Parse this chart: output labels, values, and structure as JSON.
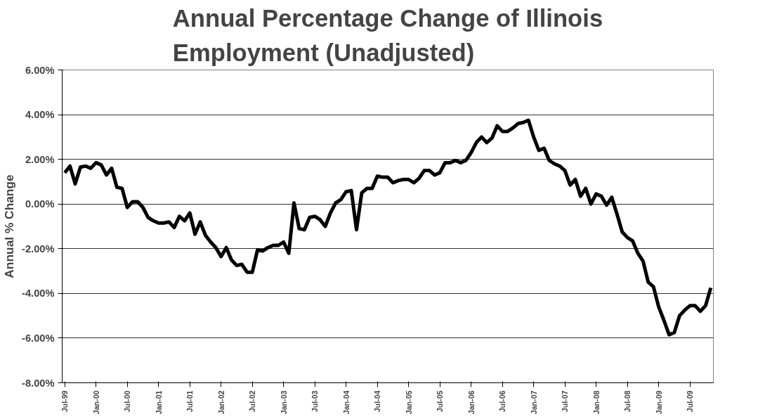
{
  "chart_data": {
    "type": "line",
    "title": "Annual Percentage Change of Illinois\nEmployment (Unadjusted)",
    "ylabel": "Annual % Change",
    "categories": [
      "Jul-99",
      null,
      null,
      null,
      null,
      null,
      "Jan-00",
      null,
      null,
      null,
      null,
      null,
      "Jul-00",
      null,
      null,
      null,
      null,
      null,
      "Jan-01",
      null,
      null,
      null,
      null,
      null,
      "Jul-01",
      null,
      null,
      null,
      null,
      null,
      "Jan-02",
      null,
      null,
      null,
      null,
      null,
      "Jul-02",
      null,
      null,
      null,
      null,
      null,
      "Jan-03",
      null,
      null,
      null,
      null,
      null,
      "Jul-03",
      null,
      null,
      null,
      null,
      null,
      "Jan-04",
      null,
      null,
      null,
      null,
      null,
      "Jul-04",
      null,
      null,
      null,
      null,
      null,
      "Jan-05",
      null,
      null,
      null,
      null,
      null,
      "Jul-05",
      null,
      null,
      null,
      null,
      null,
      "Jan-06",
      null,
      null,
      null,
      null,
      null,
      "Jul-06",
      null,
      null,
      null,
      null,
      null,
      "Jan-07",
      null,
      null,
      null,
      null,
      null,
      "Jul-07",
      null,
      null,
      null,
      null,
      null,
      "Jan-08",
      null,
      null,
      null,
      null,
      null,
      "Jul-08",
      null,
      null,
      null,
      null,
      null,
      "Jan-09",
      null,
      null,
      null,
      null,
      null,
      "Jul-09",
      null,
      null,
      null,
      null
    ],
    "series": [
      {
        "color": "#000000",
        "values": [
          1.4,
          1.7,
          0.9,
          1.65,
          1.7,
          1.6,
          1.85,
          1.75,
          1.3,
          1.6,
          0.75,
          0.7,
          -0.15,
          0.1,
          0.1,
          -0.15,
          -0.6,
          -0.75,
          -0.85,
          -0.85,
          -0.8,
          -1.05,
          -0.55,
          -0.75,
          -0.4,
          -1.35,
          -0.8,
          -1.4,
          -1.7,
          -1.95,
          -2.35,
          -1.95,
          -2.5,
          -2.75,
          -2.7,
          -3.05,
          -3.05,
          -2.05,
          -2.1,
          -1.95,
          -1.85,
          -1.85,
          -1.7,
          -2.2,
          0.05,
          -1.1,
          -1.15,
          -0.6,
          -0.55,
          -0.7,
          -1.0,
          -0.4,
          0.05,
          0.2,
          0.55,
          0.6,
          -1.15,
          0.5,
          0.7,
          0.7,
          1.25,
          1.2,
          1.2,
          0.95,
          1.05,
          1.1,
          1.1,
          0.95,
          1.15,
          1.5,
          1.5,
          1.3,
          1.4,
          1.85,
          1.85,
          1.95,
          1.85,
          1.95,
          2.3,
          2.75,
          3.0,
          2.75,
          2.95,
          3.5,
          3.25,
          3.25,
          3.4,
          3.6,
          3.65,
          3.75,
          3.0,
          2.4,
          2.5,
          1.95,
          1.8,
          1.7,
          1.5,
          0.85,
          1.1,
          0.35,
          0.7,
          0.0,
          0.45,
          0.35,
          -0.05,
          0.3,
          -0.45,
          -1.25,
          -1.5,
          -1.65,
          -2.2,
          -2.55,
          -3.5,
          -3.7,
          -4.6,
          -5.2,
          -5.85,
          -5.75,
          -5.0,
          -4.75,
          -4.55,
          -4.55,
          -4.8,
          -4.55,
          -3.75
        ]
      }
    ],
    "ylim": [
      -8,
      6
    ],
    "yticks": [
      {
        "value": -8,
        "label": "-8.00%"
      },
      {
        "value": -6,
        "label": "-6.00%"
      },
      {
        "value": -4,
        "label": "-4.00%"
      },
      {
        "value": -2,
        "label": "-2.00%"
      },
      {
        "value": 0,
        "label": "0.00%"
      },
      {
        "value": 2,
        "label": "2.00%"
      },
      {
        "value": 4,
        "label": "4.00%"
      },
      {
        "value": 6,
        "label": "6.00%"
      }
    ],
    "grid": "y",
    "marker": "none",
    "line_style": "solid"
  }
}
